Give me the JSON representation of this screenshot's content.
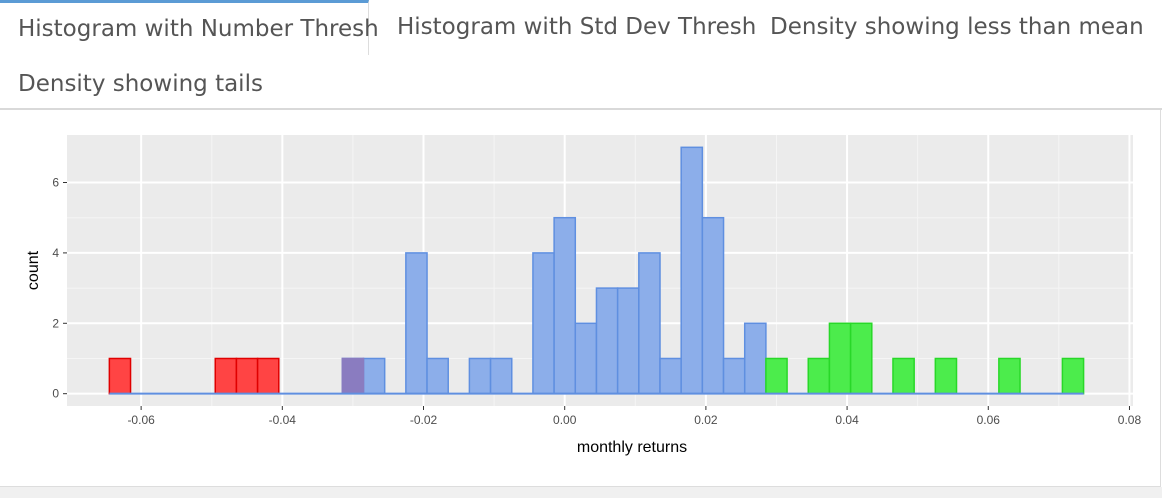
{
  "tabs": [
    {
      "label": "Histogram with Number Thresh",
      "active": true
    },
    {
      "label": "Histogram with Std Dev Thresh",
      "active": false
    },
    {
      "label": "Density showing less than mean",
      "active": false
    },
    {
      "label": "Density showing tails",
      "active": false
    }
  ],
  "colors": {
    "accent": "#5b9bd5",
    "panel_bg": "#ebebeb",
    "red": "#ff4444",
    "red_border": "#e00000",
    "blue": "#8caeea",
    "blue_border": "#5f8fe0",
    "green": "#4cec4c",
    "green_border": "#28d828",
    "purple": "#8a7cc0"
  },
  "chart_data": {
    "type": "bar",
    "xlabel": "monthly returns",
    "ylabel": "count",
    "xlim": [
      -0.0705,
      0.0805
    ],
    "ylim": [
      -0.35,
      7.35
    ],
    "x_ticks": [
      -0.06,
      -0.04,
      -0.02,
      0.0,
      0.02,
      0.04,
      0.06,
      0.08
    ],
    "x_tick_labels": [
      "-0.06",
      "-0.04",
      "-0.02",
      "0.00",
      "0.02",
      "0.04",
      "0.06",
      "0.08"
    ],
    "y_ticks": [
      0,
      2,
      4,
      6
    ],
    "y_tick_labels": [
      "0",
      "2",
      "4",
      "6"
    ],
    "grid": true,
    "bin_width": 0.003,
    "baseline": [
      -0.0645,
      0.0735
    ],
    "series": [
      {
        "color_key": "red",
        "bins": [
          {
            "x_min": -0.0645,
            "x_max": -0.0615,
            "count": 1
          },
          {
            "x_min": -0.0495,
            "x_max": -0.0465,
            "count": 1
          },
          {
            "x_min": -0.0465,
            "x_max": -0.0435,
            "count": 1
          },
          {
            "x_min": -0.0435,
            "x_max": -0.0405,
            "count": 1
          }
        ]
      },
      {
        "color_key": "blue",
        "bins": [
          {
            "x_min": -0.0315,
            "x_max": -0.0285,
            "count": 1
          },
          {
            "x_min": -0.0285,
            "x_max": -0.0255,
            "count": 1
          },
          {
            "x_min": -0.0225,
            "x_max": -0.0195,
            "count": 4
          },
          {
            "x_min": -0.0195,
            "x_max": -0.0165,
            "count": 1
          },
          {
            "x_min": -0.0135,
            "x_max": -0.0105,
            "count": 1
          },
          {
            "x_min": -0.0105,
            "x_max": -0.0075,
            "count": 1
          },
          {
            "x_min": -0.0045,
            "x_max": -0.0015,
            "count": 4
          },
          {
            "x_min": -0.0015,
            "x_max": 0.0015,
            "count": 5
          },
          {
            "x_min": 0.0015,
            "x_max": 0.0045,
            "count": 2
          },
          {
            "x_min": 0.0045,
            "x_max": 0.0075,
            "count": 3
          },
          {
            "x_min": 0.0075,
            "x_max": 0.0105,
            "count": 3
          },
          {
            "x_min": 0.0105,
            "x_max": 0.0135,
            "count": 4
          },
          {
            "x_min": 0.0135,
            "x_max": 0.0165,
            "count": 1
          },
          {
            "x_min": 0.0165,
            "x_max": 0.0195,
            "count": 7
          },
          {
            "x_min": 0.0195,
            "x_max": 0.0225,
            "count": 5
          },
          {
            "x_min": 0.0225,
            "x_max": 0.0255,
            "count": 1
          },
          {
            "x_min": 0.0255,
            "x_max": 0.0285,
            "count": 2
          }
        ]
      },
      {
        "color_key": "green",
        "bins": [
          {
            "x_min": 0.0285,
            "x_max": 0.0315,
            "count": 1
          },
          {
            "x_min": 0.0345,
            "x_max": 0.0375,
            "count": 1
          },
          {
            "x_min": 0.0375,
            "x_max": 0.0405,
            "count": 2
          },
          {
            "x_min": 0.0405,
            "x_max": 0.0435,
            "count": 2
          },
          {
            "x_min": 0.0465,
            "x_max": 0.0495,
            "count": 1
          },
          {
            "x_min": 0.0525,
            "x_max": 0.0555,
            "count": 1
          },
          {
            "x_min": 0.0615,
            "x_max": 0.0645,
            "count": 1
          },
          {
            "x_min": 0.0705,
            "x_max": 0.0735,
            "count": 1
          }
        ]
      },
      {
        "color_key": "purple",
        "bins": [
          {
            "x_min": -0.0315,
            "x_max": -0.0285,
            "count": 1
          }
        ]
      }
    ]
  }
}
